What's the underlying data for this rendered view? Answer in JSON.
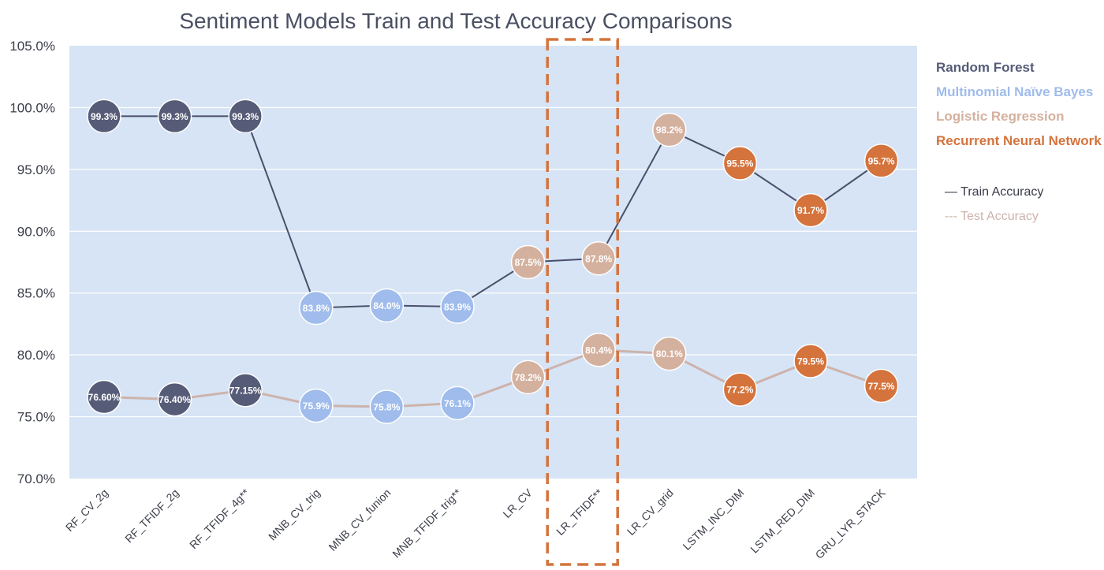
{
  "chart_data": {
    "type": "line",
    "title": "Sentiment Models Train and Test Accuracy Comparisons",
    "xlabel": "",
    "ylabel": "",
    "ylim": [
      70,
      105
    ],
    "yticks": [
      "70.0%",
      "75.0%",
      "80.0%",
      "85.0%",
      "90.0%",
      "95.0%",
      "100.0%",
      "105.0%"
    ],
    "categories": [
      "RF_CV_2g",
      "RF_TFIDF_2g",
      "RF_TFIDF_4g**",
      "MNB_CV_trig",
      "MNB_CV_funion",
      "MNB_TFIDF_trig**",
      "LR_CV",
      "LR_TFIDF**",
      "LR_CV_grid",
      "LSTM_INC_DIM",
      "LSTM_RED_DIM",
      "GRU_LYR_STACK"
    ],
    "groups": [
      0,
      0,
      0,
      1,
      1,
      1,
      2,
      2,
      2,
      3,
      3,
      3
    ],
    "highlight_category": "LR_TFIDF**",
    "series": [
      {
        "name": "Train Accuracy",
        "legend_label": "— Train Accuracy",
        "color": "#4a4f6b",
        "values": [
          99.3,
          99.3,
          99.3,
          83.8,
          84.0,
          83.9,
          87.5,
          87.8,
          98.2,
          95.5,
          91.7,
          95.7
        ],
        "labels": [
          "99.3%",
          "99.3%",
          "99.3%",
          "83.8%",
          "84.0%",
          "83.9%",
          "87.5%",
          "87.8%",
          "98.2%",
          "95.5%",
          "91.7%",
          "95.7%"
        ]
      },
      {
        "name": "Test Accuracy",
        "legend_label": "--- Test Accuracy",
        "color": "#cdb3ac",
        "values": [
          76.6,
          76.4,
          77.15,
          75.9,
          75.8,
          76.1,
          78.2,
          80.4,
          80.1,
          77.2,
          79.5,
          77.5
        ],
        "labels": [
          "76.60%",
          "76.40%",
          "77.15%",
          "75.9%",
          "75.8%",
          "76.1%",
          "78.2%",
          "80.4%",
          "80.1%",
          "77.2%",
          "79.5%",
          "77.5%"
        ]
      }
    ],
    "model_groups": [
      {
        "name": "Random Forest",
        "color": "#565c78"
      },
      {
        "name": "Multinomial Naïve Bayes",
        "color": "#9fbcec"
      },
      {
        "name": "Logistic Regression",
        "color": "#d4b19f"
      },
      {
        "name": "Recurrent Neural Network",
        "color": "#d4733c"
      }
    ],
    "plot_background": "#d6e4f5",
    "highlight_color": "#d4733c",
    "grid": true,
    "legend_position": "right"
  }
}
